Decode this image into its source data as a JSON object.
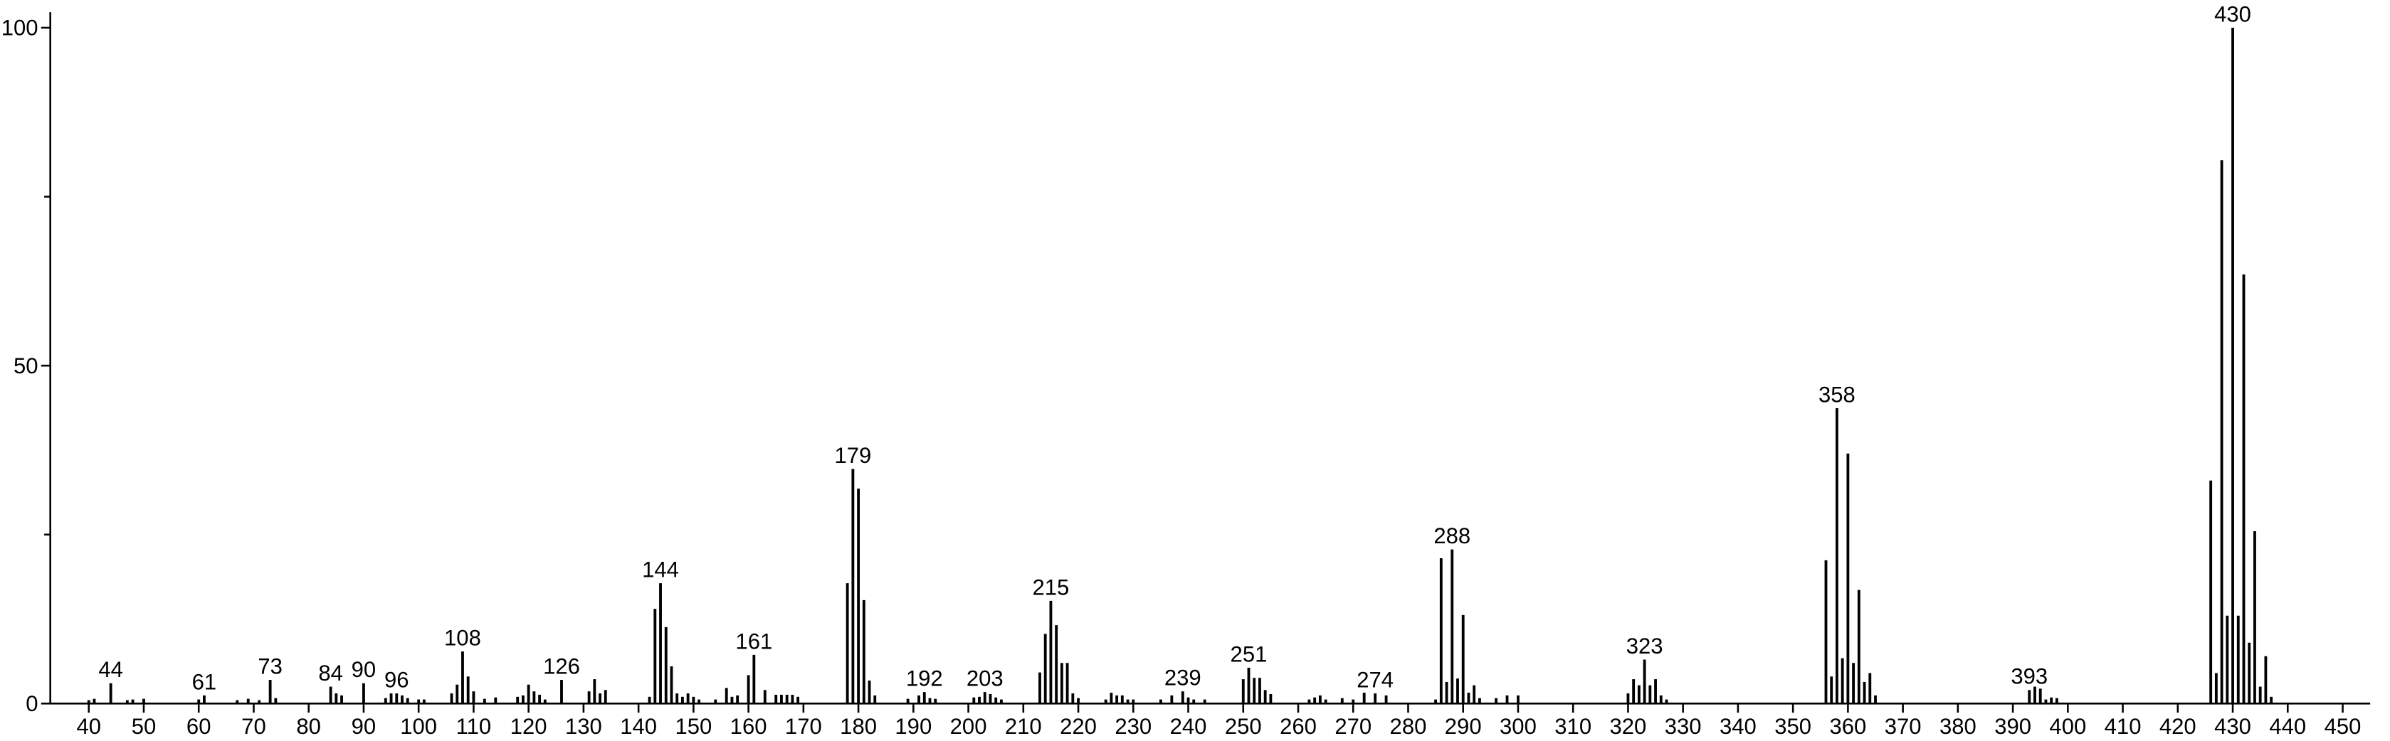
{
  "chart_data": {
    "type": "stem",
    "color": "#000000",
    "x": [
      40,
      41,
      44,
      47,
      48,
      50,
      60,
      61,
      67,
      69,
      71,
      73,
      74,
      84,
      85,
      86,
      90,
      94,
      95,
      96,
      97,
      98,
      100,
      101,
      106,
      107,
      108,
      109,
      110,
      112,
      114,
      118,
      119,
      120,
      121,
      122,
      123,
      126,
      131,
      132,
      133,
      134,
      142,
      143,
      144,
      145,
      146,
      147,
      148,
      149,
      150,
      151,
      154,
      156,
      157,
      158,
      160,
      161,
      163,
      165,
      166,
      167,
      168,
      169,
      178,
      179,
      180,
      181,
      182,
      183,
      189,
      191,
      192,
      193,
      194,
      201,
      202,
      203,
      204,
      205,
      206,
      213,
      214,
      215,
      216,
      217,
      218,
      219,
      220,
      225,
      226,
      227,
      228,
      229,
      230,
      235,
      237,
      239,
      240,
      241,
      243,
      250,
      251,
      252,
      253,
      254,
      255,
      262,
      263,
      264,
      265,
      268,
      270,
      272,
      274,
      276,
      285,
      286,
      287,
      288,
      289,
      290,
      291,
      292,
      293,
      296,
      298,
      300,
      320,
      321,
      322,
      323,
      324,
      325,
      326,
      327,
      356,
      357,
      358,
      359,
      360,
      361,
      362,
      363,
      364,
      365,
      393,
      394,
      395,
      396,
      397,
      398,
      426,
      427,
      428,
      429,
      430,
      431,
      432,
      433,
      434,
      435,
      436,
      437
    ],
    "values": [
      0.5,
      0.7,
      3,
      0.5,
      0.6,
      0.7,
      0.6,
      1.2,
      0.5,
      0.7,
      0.5,
      3.5,
      0.8,
      2.5,
      1.5,
      1.2,
      3,
      0.8,
      1.5,
      1.5,
      1.2,
      0.8,
      0.6,
      0.6,
      1.5,
      2.8,
      7.7,
      4,
      1.8,
      0.7,
      0.9,
      1,
      1.2,
      2.8,
      1.8,
      1.3,
      0.6,
      3.5,
      1.8,
      3.6,
      1.5,
      2,
      1,
      14,
      17.8,
      11.3,
      5.5,
      1.5,
      1,
      1.5,
      1,
      0.6,
      0.6,
      2.3,
      1,
      1.2,
      4.2,
      7.2,
      2,
      1.3,
      1.3,
      1.3,
      1.3,
      1,
      17.8,
      34.7,
      31.8,
      15.3,
      3.4,
      1.2,
      0.7,
      1.2,
      1.7,
      0.8,
      0.7,
      0.9,
      1,
      1.7,
      1.4,
      0.9,
      0.6,
      4.6,
      10.3,
      15.2,
      11.6,
      6,
      6,
      1.5,
      0.8,
      0.6,
      1.6,
      1.2,
      1.2,
      0.6,
      0.6,
      0.6,
      1.2,
      1.8,
      0.9,
      0.6,
      0.6,
      3.6,
      5.3,
      3.8,
      3.8,
      2,
      1.4,
      0.6,
      0.9,
      1.2,
      0.6,
      0.8,
      0.6,
      1.6,
      1.5,
      1.2,
      0.6,
      21.5,
      3.2,
      22.8,
      3.7,
      13.1,
      1.6,
      2.7,
      0.8,
      0.8,
      1.2,
      1.2,
      1.5,
      3.6,
      2.7,
      6.5,
      2.7,
      3.6,
      1.2,
      0.6,
      21.2,
      4,
      43.7,
      6.7,
      37,
      6,
      16.8,
      3.2,
      4.5,
      1.2,
      2,
      2.5,
      2.2,
      0.6,
      0.9,
      0.8,
      33,
      4.5,
      80.4,
      13,
      100,
      13,
      63.5,
      9,
      25.5,
      2.5,
      7,
      1
    ],
    "annotations": [
      44,
      61,
      73,
      84,
      90,
      96,
      108,
      126,
      144,
      161,
      179,
      192,
      203,
      215,
      239,
      251,
      274,
      288,
      323,
      358,
      393,
      430
    ],
    "xlim": [
      33,
      455
    ],
    "xticks": [
      40,
      50,
      60,
      70,
      80,
      90,
      100,
      110,
      120,
      130,
      140,
      150,
      160,
      170,
      180,
      190,
      200,
      210,
      220,
      230,
      240,
      250,
      260,
      270,
      280,
      290,
      300,
      310,
      320,
      330,
      340,
      350,
      360,
      370,
      380,
      390,
      400,
      410,
      420,
      430,
      440,
      450
    ],
    "ylim": [
      0,
      102.3
    ],
    "yticks": [
      0,
      50,
      100
    ],
    "yminor": [
      25,
      75
    ]
  }
}
